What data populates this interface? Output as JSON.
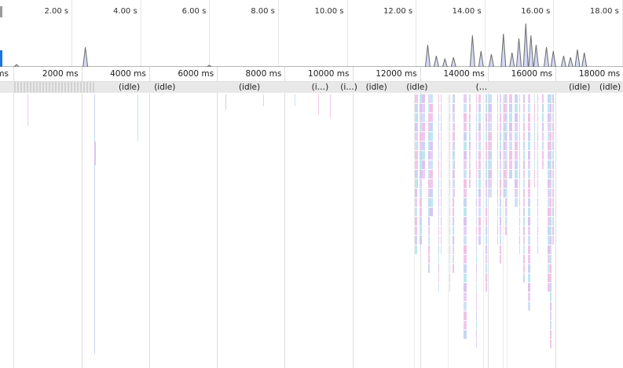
{
  "overview": {
    "tick_labels": [
      "2.00 s",
      "4.00 s",
      "6.00 s",
      "8.00 s",
      "10.00 s",
      "12.00 s",
      "14.00 s",
      "16.00 s",
      "18.00 s"
    ],
    "tick_times_s": [
      2,
      4,
      6,
      8,
      10,
      12,
      14,
      16,
      18
    ],
    "handle_color": "#1a73e8",
    "cpu_fill_color": "#d4d9f6",
    "cpu_line_color": "#6b6b6b"
  },
  "ruler": {
    "partial_left_label": "ms",
    "tick_labels": [
      "2000 ms",
      "4000 ms",
      "6000 ms",
      "8000 ms",
      "10000 ms",
      "12000 ms",
      "14000 ms",
      "16000 ms",
      "18000 ms"
    ],
    "tick_times_ms": [
      2000,
      4000,
      6000,
      8000,
      10000,
      12000,
      14000,
      16000,
      18000
    ]
  },
  "idle_labels": [
    {
      "text": "(idle)",
      "at_ms": 3050
    },
    {
      "text": "(idle)",
      "at_ms": 4100
    },
    {
      "text": "(idle)",
      "at_ms": 6600
    },
    {
      "text": "(i…)",
      "at_ms": 8750
    },
    {
      "text": "(i…)",
      "at_ms": 9600
    },
    {
      "text": "(idle)",
      "at_ms": 10350
    },
    {
      "text": "(idle)",
      "at_ms": 11550
    },
    {
      "text": "(…",
      "at_ms": 13600
    },
    {
      "text": "(idle)",
      "at_ms": 16350
    },
    {
      "text": "(idle)",
      "at_ms": 17250
    }
  ],
  "flame_palette": [
    "#f0c8ec",
    "#c9d6f2",
    "#bfe6ef",
    "#d9c6ef",
    "#e6d0f4",
    "#cfe2f5",
    "#efc4e3"
  ]
}
